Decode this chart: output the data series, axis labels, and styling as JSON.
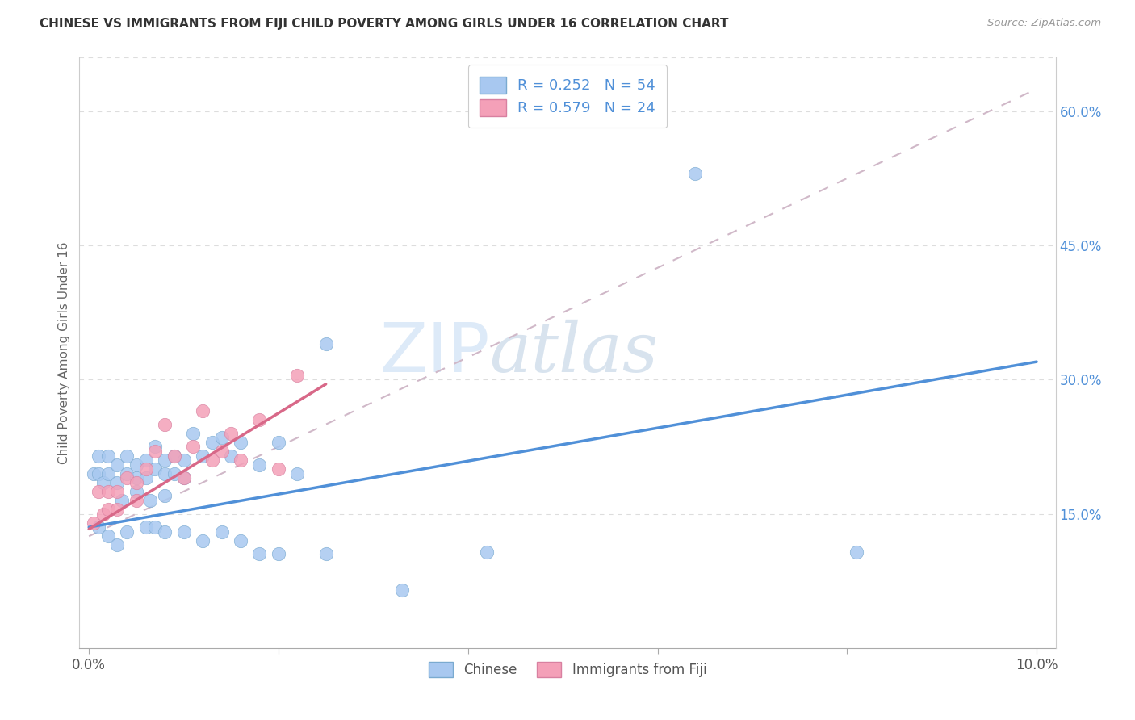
{
  "title": "CHINESE VS IMMIGRANTS FROM FIJI CHILD POVERTY AMONG GIRLS UNDER 16 CORRELATION CHART",
  "source": "Source: ZipAtlas.com",
  "ylabel": "Child Poverty Among Girls Under 16",
  "color_chinese": "#a8c8f0",
  "color_chinese_edge": "#7aaad0",
  "color_fiji": "#f4a0b8",
  "color_fiji_edge": "#d880a0",
  "color_trend_chinese": "#5090d8",
  "color_trend_fiji": "#d86888",
  "color_trend_dashed": "#d0b8c8",
  "watermark_color": "#ddeaf8",
  "grid_color": "#dddddd",
  "right_tick_color": "#5090d8",
  "chinese_x": [
    0.0005,
    0.001,
    0.001,
    0.0015,
    0.002,
    0.002,
    0.003,
    0.003,
    0.0035,
    0.004,
    0.004,
    0.005,
    0.005,
    0.005,
    0.006,
    0.006,
    0.0065,
    0.007,
    0.007,
    0.008,
    0.008,
    0.008,
    0.009,
    0.009,
    0.01,
    0.01,
    0.011,
    0.012,
    0.013,
    0.014,
    0.015,
    0.016,
    0.018,
    0.02,
    0.022,
    0.025,
    0.001,
    0.002,
    0.003,
    0.004,
    0.006,
    0.007,
    0.008,
    0.01,
    0.012,
    0.014,
    0.016,
    0.018,
    0.02,
    0.025,
    0.033,
    0.042,
    0.064,
    0.081
  ],
  "chinese_y": [
    0.195,
    0.215,
    0.195,
    0.185,
    0.215,
    0.195,
    0.205,
    0.185,
    0.165,
    0.215,
    0.195,
    0.205,
    0.19,
    0.175,
    0.21,
    0.19,
    0.165,
    0.225,
    0.2,
    0.21,
    0.195,
    0.17,
    0.215,
    0.195,
    0.21,
    0.19,
    0.24,
    0.215,
    0.23,
    0.235,
    0.215,
    0.23,
    0.205,
    0.23,
    0.195,
    0.34,
    0.135,
    0.125,
    0.115,
    0.13,
    0.135,
    0.135,
    0.13,
    0.13,
    0.12,
    0.13,
    0.12,
    0.105,
    0.105,
    0.105,
    0.065,
    0.107,
    0.53,
    0.107
  ],
  "fiji_x": [
    0.0005,
    0.001,
    0.0015,
    0.002,
    0.002,
    0.003,
    0.003,
    0.004,
    0.005,
    0.005,
    0.006,
    0.007,
    0.008,
    0.009,
    0.01,
    0.011,
    0.012,
    0.013,
    0.014,
    0.015,
    0.016,
    0.018,
    0.02,
    0.022
  ],
  "fiji_y": [
    0.14,
    0.175,
    0.15,
    0.175,
    0.155,
    0.175,
    0.155,
    0.19,
    0.185,
    0.165,
    0.2,
    0.22,
    0.25,
    0.215,
    0.19,
    0.225,
    0.265,
    0.21,
    0.22,
    0.24,
    0.21,
    0.255,
    0.2,
    0.305
  ],
  "trend_chinese_x0": 0.0,
  "trend_chinese_y0": 0.135,
  "trend_chinese_x1": 0.1,
  "trend_chinese_y1": 0.32,
  "trend_fiji_x0": 0.0,
  "trend_fiji_y0": 0.133,
  "trend_fiji_x1": 0.025,
  "trend_fiji_y1": 0.295,
  "trend_dash_x0": 0.0,
  "trend_dash_y0": 0.125,
  "trend_dash_x1": 0.1,
  "trend_dash_y1": 0.625,
  "xlim": [
    -0.001,
    0.102
  ],
  "ylim": [
    0.0,
    0.66
  ],
  "x_ticks": [
    0.0,
    0.02,
    0.04,
    0.06,
    0.08,
    0.1
  ],
  "x_tick_labels": [
    "0.0%",
    "",
    "",
    "",
    "",
    "10.0%"
  ],
  "y_ticks_right": [
    0.15,
    0.3,
    0.45,
    0.6
  ],
  "y_tick_labels_right": [
    "15.0%",
    "30.0%",
    "45.0%",
    "60.0%"
  ],
  "legend1_label": "R = 0.252   N = 54",
  "legend2_label": "R = 0.579   N = 24",
  "legend_bottom1": "Chinese",
  "legend_bottom2": "Immigrants from Fiji"
}
